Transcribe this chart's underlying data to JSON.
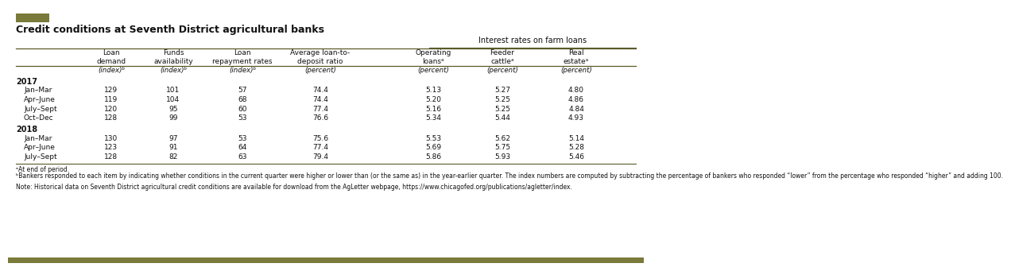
{
  "title": "Credit conditions at Seventh District agricultural banks",
  "interest_rates_header": "Interest rates on farm loans",
  "header_row1": [
    "Loan\ndemand",
    "Funds\navailability",
    "Loan\nrepayment rates",
    "Average loan-to-\ndeposit ratio",
    "Operating\nloansᵃ",
    "Feeder\ncattleᵃ",
    "Real\nestateᵃ"
  ],
  "header_row2": [
    "(index)ᵇ",
    "(index)ᵇ",
    "(index)ᵇ",
    "(percent)",
    "(percent)",
    "(percent)",
    "(percent)"
  ],
  "sections": [
    {
      "year": "2017",
      "rows": [
        [
          "Jan–Mar",
          "129",
          "101",
          "57",
          "74.4",
          "5.13",
          "5.27",
          "4.80"
        ],
        [
          "Apr–June",
          "119",
          "104",
          "68",
          "74.4",
          "5.20",
          "5.25",
          "4.86"
        ],
        [
          "July–Sept",
          "120",
          "95",
          "60",
          "77.4",
          "5.16",
          "5.25",
          "4.84"
        ],
        [
          "Oct–Dec",
          "128",
          "99",
          "53",
          "76.6",
          "5.34",
          "5.44",
          "4.93"
        ]
      ]
    },
    {
      "year": "2018",
      "rows": [
        [
          "Jan–Mar",
          "130",
          "97",
          "53",
          "75.6",
          "5.53",
          "5.62",
          "5.14"
        ],
        [
          "Apr–June",
          "123",
          "91",
          "64",
          "77.4",
          "5.69",
          "5.75",
          "5.28"
        ],
        [
          "July–Sept",
          "128",
          "82",
          "63",
          "79.4",
          "5.86",
          "5.93",
          "5.46"
        ]
      ]
    }
  ],
  "footnote_a": "ᵃAt end of period.",
  "footnote_b": "ᵇBankers responded to each item by indicating whether conditions in the current quarter were higher or lower than (or the same as) in the year-earlier quarter. The index numbers are computed by subtracting the percentage of bankers who responded “lower” from the percentage who responded “higher” and adding 100.",
  "footnote_note": "Note: Historical data on Seventh District agricultural credit conditions are available for download from the AgLetter webpage, https://www.chicagofed.org/publications/agletter/index.",
  "accent_color": "#7a7a3a",
  "line_color": "#5a5a2a",
  "text_color": "#111111",
  "bg_color": "#ffffff"
}
